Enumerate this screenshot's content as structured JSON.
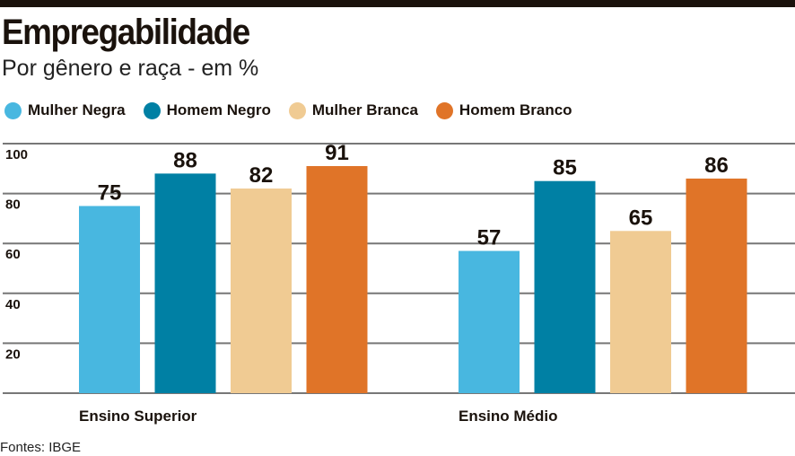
{
  "title": "Empregabilidade",
  "subtitle": "Por gênero e raça - em %",
  "source": "Fontes: IBGE",
  "chart_data": {
    "type": "bar",
    "title": "Empregabilidade",
    "subtitle": "Por gênero e raça - em %",
    "categories": [
      "Ensino Superior",
      "Ensino Médio"
    ],
    "series": [
      {
        "name": "Mulher Negra",
        "color": "#48b7e0",
        "values": [
          75,
          57
        ]
      },
      {
        "name": "Homem Negro",
        "color": "#0080a4",
        "values": [
          88,
          85
        ]
      },
      {
        "name": "Mulher Branca",
        "color": "#f0cb93",
        "values": [
          82,
          65
        ]
      },
      {
        "name": "Homem Branco",
        "color": "#e07428",
        "values": [
          91,
          86
        ]
      }
    ],
    "yticks": [
      20,
      40,
      60,
      80,
      100
    ],
    "ylim": [
      0,
      100
    ],
    "grid": true,
    "legend": "top-left"
  }
}
